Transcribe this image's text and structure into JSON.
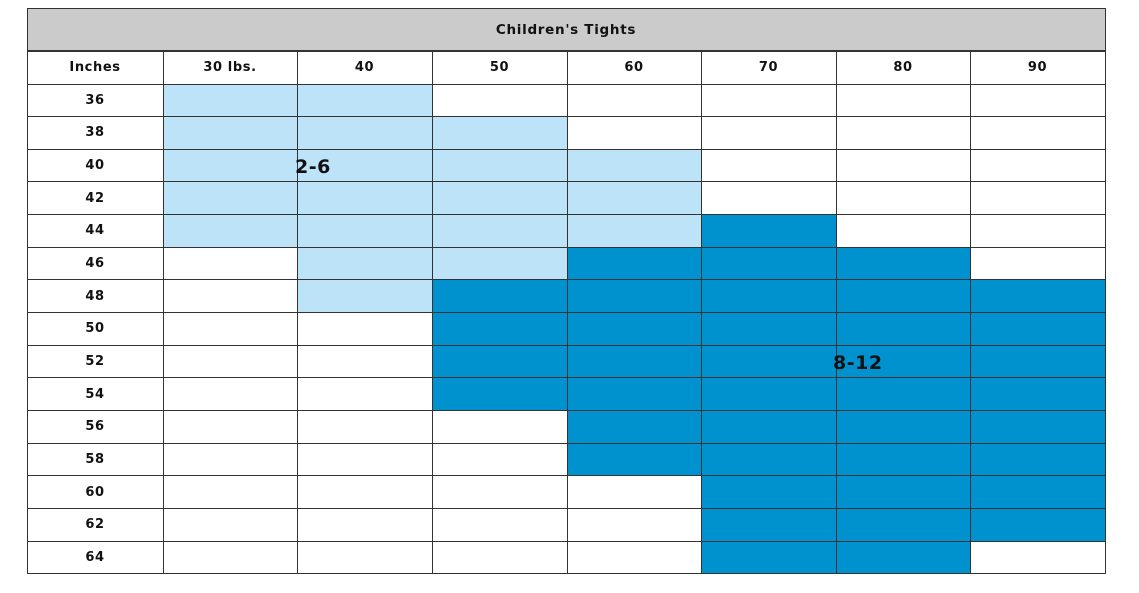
{
  "chart_data": {
    "type": "table",
    "title": "Children's Tights",
    "corner_label": "Inches",
    "columns": [
      "30 lbs.",
      "40",
      "50",
      "60",
      "70",
      "80",
      "90"
    ],
    "rows": [
      "36",
      "38",
      "40",
      "42",
      "44",
      "46",
      "48",
      "50",
      "52",
      "54",
      "56",
      "58",
      "60",
      "62",
      "64"
    ],
    "zones": [
      {
        "label": "2-6",
        "color": "#bde3f8",
        "cells": [
          [
            "36",
            "30 lbs."
          ],
          [
            "36",
            "40"
          ],
          [
            "38",
            "30 lbs."
          ],
          [
            "38",
            "40"
          ],
          [
            "38",
            "50"
          ],
          [
            "40",
            "30 lbs."
          ],
          [
            "40",
            "40"
          ],
          [
            "40",
            "50"
          ],
          [
            "40",
            "60"
          ],
          [
            "42",
            "30 lbs."
          ],
          [
            "42",
            "40"
          ],
          [
            "42",
            "50"
          ],
          [
            "42",
            "60"
          ],
          [
            "44",
            "30 lbs."
          ],
          [
            "44",
            "40"
          ],
          [
            "44",
            "50"
          ],
          [
            "44",
            "60"
          ],
          [
            "46",
            "40"
          ],
          [
            "46",
            "50"
          ],
          [
            "48",
            "40"
          ]
        ]
      },
      {
        "label": "8-12",
        "color": "#0092cf",
        "cells": [
          [
            "44",
            "70"
          ],
          [
            "46",
            "60"
          ],
          [
            "46",
            "70"
          ],
          [
            "46",
            "80"
          ],
          [
            "48",
            "50"
          ],
          [
            "48",
            "60"
          ],
          [
            "48",
            "70"
          ],
          [
            "48",
            "80"
          ],
          [
            "48",
            "90"
          ],
          [
            "50",
            "50"
          ],
          [
            "50",
            "60"
          ],
          [
            "50",
            "70"
          ],
          [
            "50",
            "80"
          ],
          [
            "50",
            "90"
          ],
          [
            "52",
            "50"
          ],
          [
            "52",
            "60"
          ],
          [
            "52",
            "70"
          ],
          [
            "52",
            "80"
          ],
          [
            "52",
            "90"
          ],
          [
            "54",
            "50"
          ],
          [
            "54",
            "60"
          ],
          [
            "54",
            "70"
          ],
          [
            "54",
            "80"
          ],
          [
            "54",
            "90"
          ],
          [
            "56",
            "60"
          ],
          [
            "56",
            "70"
          ],
          [
            "56",
            "80"
          ],
          [
            "56",
            "90"
          ],
          [
            "58",
            "60"
          ],
          [
            "58",
            "70"
          ],
          [
            "58",
            "80"
          ],
          [
            "58",
            "90"
          ],
          [
            "60",
            "70"
          ],
          [
            "60",
            "80"
          ],
          [
            "60",
            "90"
          ],
          [
            "62",
            "70"
          ],
          [
            "62",
            "80"
          ],
          [
            "62",
            "90"
          ],
          [
            "64",
            "70"
          ],
          [
            "64",
            "80"
          ]
        ]
      }
    ]
  }
}
